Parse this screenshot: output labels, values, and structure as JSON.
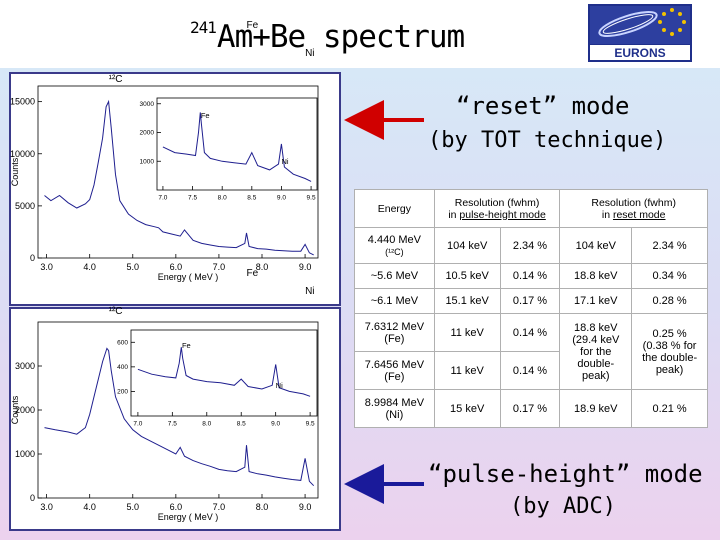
{
  "title": {
    "superscript": "241",
    "text": "Am+Be  spectrum"
  },
  "logo": {
    "text": "EURONS",
    "colors": {
      "blue": "#1f2f8a",
      "gold": "#f2c200"
    }
  },
  "reset_mode": {
    "line1": "“reset” mode",
    "line2": "(by TOT technique)"
  },
  "pulse_mode": {
    "line1": "“pulse-height” mode",
    "line2": "(by ADC)"
  },
  "arrow_color": "#d00000",
  "arrow2_color": "#1a1a9a",
  "table": {
    "headers": {
      "energy": "Energy",
      "res_pulse_line1": "Resolution (fwhm)",
      "res_pulse_line2_prefix": "in ",
      "res_pulse_line2": "pulse-height mode",
      "res_reset_line1": "Resolution (fwhm)",
      "res_reset_line2_prefix": "in ",
      "res_reset_line2": "reset mode"
    },
    "rows": [
      {
        "energy_line1": "4.440 MeV",
        "energy_line2": "(¹²C)",
        "pulse_kev": "104 keV",
        "pulse_pct": "2.34 %",
        "reset_kev": "104 keV",
        "reset_pct": "2.34 %"
      },
      {
        "energy_line1": "~5.6 MeV",
        "pulse_kev": "10.5 keV",
        "pulse_pct": "0.14 %",
        "reset_kev": "18.8 keV",
        "reset_pct": "0.34 %"
      },
      {
        "energy_line1": "~6.1 MeV",
        "pulse_kev": "15.1 keV",
        "pulse_pct": "0.17 %",
        "reset_kev": "17.1 keV",
        "reset_pct": "0.28 %"
      },
      {
        "energy_line1": "7.6312 MeV",
        "energy_line2": "(Fe)",
        "pulse_kev": "11 keV",
        "pulse_pct": "0.14 %"
      },
      {
        "energy_line1": "7.6456 MeV",
        "energy_line2": "(Fe)",
        "pulse_kev": "11 keV",
        "pulse_pct": "0.14 %"
      },
      {
        "energy_line1": "8.9984 MeV",
        "energy_line2": "(Ni)",
        "pulse_kev": "15 keV",
        "pulse_pct": "0.17 %",
        "reset_kev": "18.9 keV",
        "reset_pct": "0.21 %"
      }
    ],
    "merged_reset_kev": [
      "18.8 keV",
      "(29.4 keV",
      "for the",
      "double-",
      "peak)"
    ],
    "merged_reset_pct": [
      "0.25 %",
      "(0.38 % for",
      "the double-",
      "peak)"
    ]
  },
  "chart_data": [
    {
      "type": "line",
      "panel": "reset mode (main)",
      "xlabel": "Energy ( MeV )",
      "ylabel": "Counts",
      "xlim": [
        2.8,
        9.3
      ],
      "ylim": [
        0,
        16500
      ],
      "xticks": [
        3,
        4,
        5,
        6,
        7,
        8,
        9
      ],
      "yticks": [
        0,
        5000,
        10000,
        15000
      ],
      "color": "#1f1f8f",
      "annotations": [
        {
          "text": "¹²C",
          "x": 4.44
        },
        {
          "text": "Fe",
          "x": 7.64
        },
        {
          "text": "Ni",
          "x": 9.0
        }
      ],
      "x": [
        2.95,
        3.1,
        3.3,
        3.5,
        3.7,
        3.9,
        4.0,
        4.1,
        4.2,
        4.3,
        4.38,
        4.44,
        4.5,
        4.6,
        4.7,
        4.9,
        5.1,
        5.3,
        5.5,
        5.6,
        5.7,
        5.9,
        6.1,
        6.2,
        6.4,
        6.6,
        6.8,
        7.0,
        7.2,
        7.4,
        7.6,
        7.64,
        7.7,
        7.9,
        8.1,
        8.3,
        8.5,
        8.7,
        8.9,
        9.0,
        9.1,
        9.2
      ],
      "y": [
        6000,
        5500,
        6000,
        5300,
        4800,
        5200,
        5600,
        7000,
        9200,
        11500,
        14500,
        15000,
        12500,
        8000,
        5500,
        4200,
        3600,
        3200,
        3000,
        2900,
        2500,
        2300,
        2100,
        2700,
        1700,
        1400,
        1250,
        1100,
        1050,
        1000,
        1400,
        2400,
        1100,
        900,
        850,
        750,
        700,
        650,
        650,
        1300,
        500,
        300
      ]
    },
    {
      "type": "line",
      "panel": "reset mode (inset)",
      "xlim": [
        6.9,
        9.6
      ],
      "ylim": [
        0,
        3200
      ],
      "xticks": [
        7.0,
        7.5,
        8.0,
        8.5,
        9.0,
        9.5
      ],
      "yticks": [
        1000,
        2000,
        3000
      ],
      "color": "#1f1f8f",
      "annotations": [
        {
          "text": "Fe",
          "x": 7.64
        },
        {
          "text": "Ni",
          "x": 9.0
        }
      ],
      "x": [
        7.0,
        7.2,
        7.4,
        7.55,
        7.6,
        7.63,
        7.65,
        7.7,
        7.8,
        8.0,
        8.2,
        8.4,
        8.5,
        8.6,
        8.8,
        8.95,
        9.0,
        9.05,
        9.2,
        9.4,
        9.5
      ],
      "y": [
        1500,
        1300,
        1250,
        1200,
        2000,
        2700,
        2300,
        1300,
        1100,
        1000,
        950,
        900,
        1300,
        850,
        700,
        900,
        1600,
        800,
        550,
        400,
        300
      ]
    },
    {
      "type": "line",
      "panel": "pulse-height mode (main)",
      "xlabel": "Energy ( MeV )",
      "ylabel": "Counts",
      "xlim": [
        2.8,
        9.3
      ],
      "ylim": [
        0,
        4000
      ],
      "xticks": [
        3,
        4,
        5,
        6,
        7,
        8,
        9
      ],
      "yticks": [
        0,
        1000,
        2000,
        3000
      ],
      "color": "#1f1f8f",
      "annotations": [
        {
          "text": "¹²C",
          "x": 4.44
        },
        {
          "text": "Fe",
          "x": 7.64
        },
        {
          "text": "Ni",
          "x": 9.0
        }
      ],
      "x": [
        2.95,
        3.2,
        3.5,
        3.7,
        3.9,
        4.0,
        4.1,
        4.2,
        4.3,
        4.4,
        4.44,
        4.5,
        4.6,
        4.8,
        5.0,
        5.2,
        5.4,
        5.6,
        5.8,
        6.0,
        6.1,
        6.2,
        6.4,
        6.6,
        6.8,
        7.0,
        7.2,
        7.4,
        7.6,
        7.64,
        7.7,
        7.9,
        8.1,
        8.3,
        8.5,
        8.7,
        8.9,
        9.0,
        9.1,
        9.2
      ],
      "y": [
        1600,
        1550,
        1500,
        1450,
        1600,
        1900,
        2300,
        2700,
        3100,
        3400,
        3350,
        2900,
        2300,
        1800,
        1550,
        1400,
        1300,
        1200,
        1100,
        1000,
        1150,
        950,
        850,
        780,
        720,
        650,
        620,
        600,
        700,
        1200,
        600,
        550,
        520,
        480,
        450,
        420,
        400,
        900,
        380,
        280
      ]
    },
    {
      "type": "line",
      "panel": "pulse-height mode (inset)",
      "xlim": [
        6.9,
        9.6
      ],
      "ylim": [
        0,
        700
      ],
      "xticks": [
        7.0,
        7.5,
        8.0,
        8.5,
        9.0,
        9.5
      ],
      "yticks": [
        200,
        400,
        600
      ],
      "color": "#1f1f8f",
      "annotations": [
        {
          "text": "Fe",
          "x": 7.64
        },
        {
          "text": "Ni",
          "x": 9.0
        }
      ],
      "x": [
        7.0,
        7.2,
        7.4,
        7.55,
        7.6,
        7.63,
        7.65,
        7.7,
        7.8,
        8.0,
        8.2,
        8.4,
        8.5,
        8.6,
        8.8,
        8.95,
        9.0,
        9.05,
        9.2,
        9.4,
        9.5
      ],
      "y": [
        380,
        340,
        320,
        310,
        430,
        560,
        470,
        330,
        300,
        280,
        270,
        250,
        300,
        240,
        220,
        250,
        420,
        230,
        200,
        180,
        160
      ]
    }
  ]
}
